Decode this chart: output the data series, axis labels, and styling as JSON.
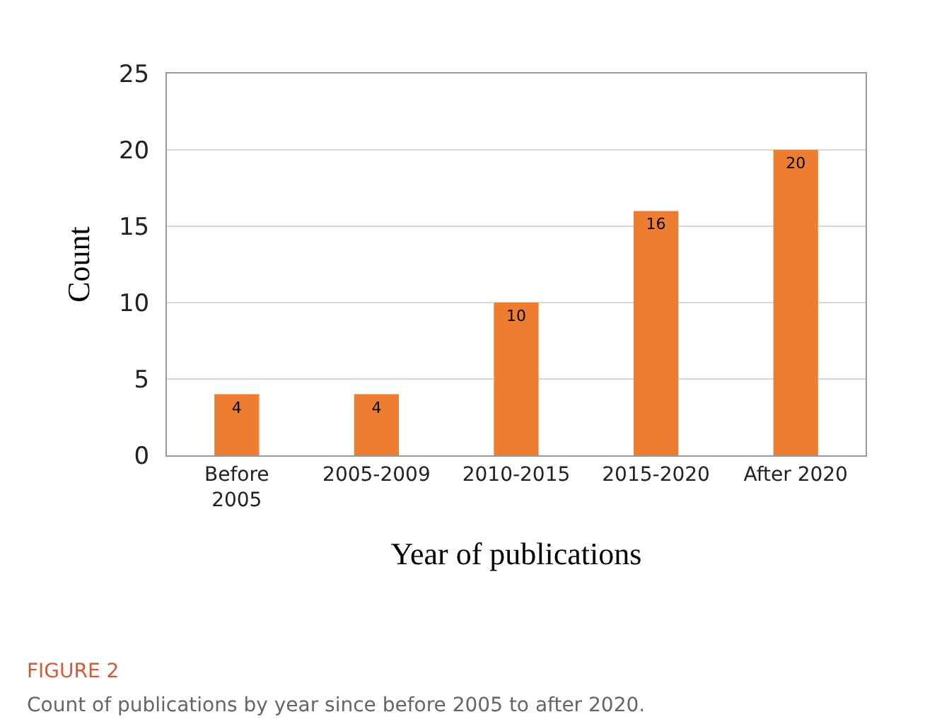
{
  "chart_data": {
    "type": "bar",
    "categories": [
      "Before\n2005",
      "2005-2009",
      "2010-2015",
      "2015-2020",
      "After 2020"
    ],
    "values": [
      4,
      4,
      10,
      16,
      20
    ],
    "color": "#ed7d31",
    "xlabel": "Year of publications",
    "ylabel": "Count",
    "ylim": [
      0,
      25
    ],
    "yticks": [
      0,
      5,
      10,
      15,
      20,
      25
    ],
    "grid": "y",
    "data_labels": true,
    "annotations": [
      "FIGURE 2",
      "Count of publications by year since before 2005 to after 2020."
    ]
  }
}
